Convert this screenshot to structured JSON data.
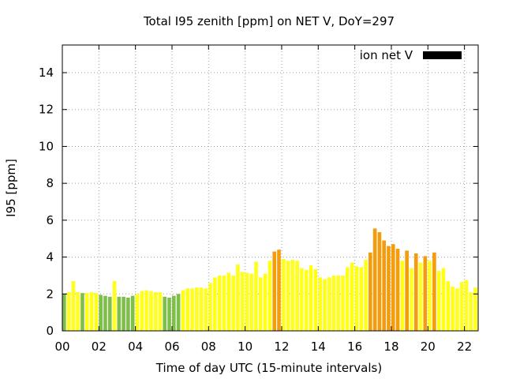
{
  "chart_data": {
    "type": "bar",
    "title": "Total I95 zenith [ppm] on NET V, DoY=297",
    "xlabel": "Time of day UTC (15-minute intervals)",
    "ylabel": "I95 [ppm]",
    "ylim": [
      0,
      15.5
    ],
    "yticks": [
      0,
      2,
      4,
      6,
      8,
      10,
      12,
      14
    ],
    "ytick_labels": [
      "0",
      "2",
      "4",
      "6",
      "8",
      "10",
      "12",
      "14"
    ],
    "xlim": [
      0,
      22.75
    ],
    "xticks": [
      0,
      2,
      4,
      6,
      8,
      10,
      12,
      14,
      16,
      18,
      20,
      22
    ],
    "xtick_labels": [
      "00",
      "02",
      "04",
      "06",
      "08",
      "10",
      "12",
      "14",
      "16",
      "18",
      "20",
      "22"
    ],
    "grid": true,
    "legend": {
      "label": "ion net V",
      "position": "top-right",
      "color": "#000000"
    },
    "colors": {
      "green": "#7dbf4a",
      "yellow": "#ffff1a",
      "orange": "#f59c0c"
    },
    "bar_width_hours": 0.2,
    "series": [
      {
        "name": "ion net V",
        "values": [
          2.0,
          2.1,
          2.7,
          2.1,
          2.05,
          2.05,
          2.1,
          2.05,
          1.95,
          1.9,
          1.85,
          2.7,
          1.85,
          1.85,
          1.8,
          1.9,
          2.0,
          2.15,
          2.2,
          2.15,
          2.1,
          2.1,
          1.85,
          1.8,
          1.9,
          2.0,
          2.2,
          2.3,
          2.3,
          2.35,
          2.35,
          2.3,
          2.6,
          2.9,
          3.0,
          3.0,
          3.15,
          3.0,
          3.6,
          3.2,
          3.15,
          3.1,
          3.75,
          2.9,
          3.1,
          3.8,
          4.3,
          4.4,
          3.9,
          3.8,
          3.85,
          3.8,
          3.4,
          3.3,
          3.55,
          3.35,
          2.9,
          2.8,
          2.9,
          3.0,
          3.0,
          3.0,
          3.45,
          3.7,
          3.5,
          3.45,
          3.85,
          4.25,
          5.55,
          5.35,
          4.9,
          4.6,
          4.7,
          4.45,
          3.8,
          4.35,
          3.4,
          4.2,
          3.7,
          4.05,
          3.8,
          4.25,
          3.25,
          3.4,
          2.7,
          2.4,
          2.3,
          2.65,
          2.75,
          2.1,
          2.35
        ],
        "colors": [
          "green",
          "yellow",
          "yellow",
          "yellow",
          "green",
          "yellow",
          "yellow",
          "yellow",
          "green",
          "green",
          "green",
          "yellow",
          "green",
          "green",
          "green",
          "green",
          "yellow",
          "yellow",
          "yellow",
          "yellow",
          "yellow",
          "yellow",
          "green",
          "green",
          "green",
          "green",
          "yellow",
          "yellow",
          "yellow",
          "yellow",
          "yellow",
          "yellow",
          "yellow",
          "yellow",
          "yellow",
          "yellow",
          "yellow",
          "yellow",
          "yellow",
          "yellow",
          "yellow",
          "yellow",
          "yellow",
          "yellow",
          "yellow",
          "yellow",
          "orange",
          "orange",
          "yellow",
          "yellow",
          "yellow",
          "yellow",
          "yellow",
          "yellow",
          "yellow",
          "yellow",
          "yellow",
          "yellow",
          "yellow",
          "yellow",
          "yellow",
          "yellow",
          "yellow",
          "yellow",
          "yellow",
          "yellow",
          "yellow",
          "orange",
          "orange",
          "orange",
          "orange",
          "orange",
          "orange",
          "orange",
          "yellow",
          "orange",
          "yellow",
          "orange",
          "yellow",
          "orange",
          "yellow",
          "orange",
          "yellow",
          "yellow",
          "yellow",
          "yellow",
          "yellow",
          "yellow",
          "yellow",
          "yellow",
          "yellow"
        ]
      }
    ]
  }
}
